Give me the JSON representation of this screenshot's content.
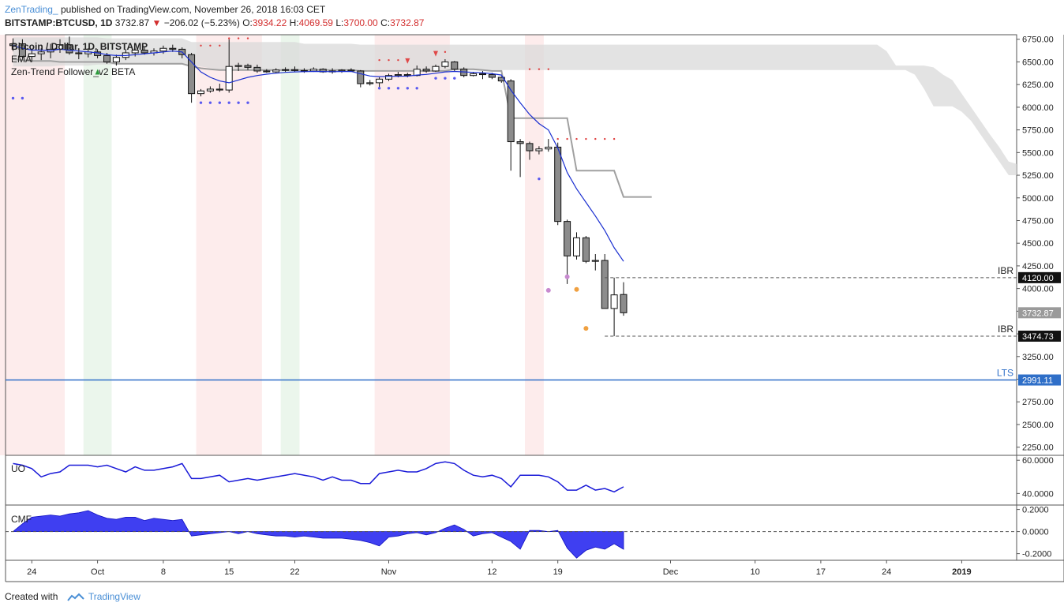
{
  "header": {
    "publisher": "ZenTrading_",
    "published_text": "published on TradingView.com, November 26, 2018 16:03 CET",
    "symbol": "BITSTAMP:BTCUSD, 1D",
    "last": "3732.87",
    "change_arrow": "▼",
    "change": "−206.02 (−5.23%)",
    "o_label": "O:",
    "o": "3934.22",
    "h_label": "H:",
    "h": "4069.59",
    "l_label": "L:",
    "l": "3700.00",
    "c_label": "C:",
    "c": "3732.87"
  },
  "footer": {
    "created_with": "Created with",
    "brand": "TradingView",
    "logo_icon": "tradingview-logo-icon"
  },
  "chart_data": {
    "type": "candlestick",
    "legend": [
      "Bitcoin / Dollar, 1D, BITSTAMP",
      "EMA",
      "Zen-Trend Follower_v2 BETA"
    ],
    "y_axis_ticks": [
      "6750.00",
      "6500.00",
      "6250.00",
      "6000.00",
      "5750.00",
      "5500.00",
      "5250.00",
      "5000.00",
      "4750.00",
      "4500.00",
      "4250.00",
      "4000.00",
      "3750.00",
      "3500.00",
      "3250.00",
      "3000.00",
      "2750.00",
      "2500.00",
      "2250.00"
    ],
    "ylim": [
      2160,
      6800
    ],
    "x_axis_ticks": [
      "24",
      "Oct",
      "8",
      "15",
      "22",
      "Nov",
      "12",
      "19",
      "Dec",
      "10",
      "17",
      "24",
      "2019"
    ],
    "price_labels": [
      {
        "label": "4120.00",
        "value": 4120,
        "style": "dark"
      },
      {
        "label": "3732.87",
        "value": 3732.87,
        "style": "gray"
      },
      {
        "label": "3474.73",
        "value": 3474.73,
        "style": "dark"
      },
      {
        "label": "2991.11",
        "value": 2991.11,
        "style": "blue"
      }
    ],
    "levels": [
      {
        "name": "IBR",
        "value": 4120,
        "style": "dashed"
      },
      {
        "name": "IBR",
        "value": 3474.73,
        "style": "dashed"
      },
      {
        "name": "LTS",
        "value": 2991.11,
        "style": "solid-blue"
      }
    ],
    "candles": [
      {
        "d": "2018-09-22",
        "o": 6700,
        "h": 6760,
        "l": 6620,
        "c": 6680
      },
      {
        "d": "2018-09-23",
        "o": 6700,
        "h": 6750,
        "l": 6540,
        "c": 6560
      },
      {
        "d": "2018-09-24",
        "o": 6560,
        "h": 6640,
        "l": 6500,
        "c": 6590
      },
      {
        "d": "2018-09-25",
        "o": 6590,
        "h": 6650,
        "l": 6520,
        "c": 6610
      },
      {
        "d": "2018-09-26",
        "o": 6610,
        "h": 6700,
        "l": 6540,
        "c": 6640
      },
      {
        "d": "2018-09-27",
        "o": 6640,
        "h": 6750,
        "l": 6600,
        "c": 6690
      },
      {
        "d": "2018-09-28",
        "o": 6690,
        "h": 6780,
        "l": 6580,
        "c": 6600
      },
      {
        "d": "2018-09-29",
        "o": 6600,
        "h": 6640,
        "l": 6530,
        "c": 6590
      },
      {
        "d": "2018-09-30",
        "o": 6590,
        "h": 6650,
        "l": 6550,
        "c": 6610
      },
      {
        "d": "2018-10-01",
        "o": 6610,
        "h": 6640,
        "l": 6540,
        "c": 6570
      },
      {
        "d": "2018-10-02",
        "o": 6570,
        "h": 6600,
        "l": 6480,
        "c": 6500
      },
      {
        "d": "2018-10-03",
        "o": 6500,
        "h": 6580,
        "l": 6460,
        "c": 6550
      },
      {
        "d": "2018-10-04",
        "o": 6550,
        "h": 6640,
        "l": 6520,
        "c": 6600
      },
      {
        "d": "2018-10-05",
        "o": 6600,
        "h": 6650,
        "l": 6560,
        "c": 6630
      },
      {
        "d": "2018-10-06",
        "o": 6630,
        "h": 6660,
        "l": 6580,
        "c": 6600
      },
      {
        "d": "2018-10-07",
        "o": 6600,
        "h": 6650,
        "l": 6570,
        "c": 6620
      },
      {
        "d": "2018-10-08",
        "o": 6620,
        "h": 6680,
        "l": 6590,
        "c": 6650
      },
      {
        "d": "2018-10-09",
        "o": 6650,
        "h": 6690,
        "l": 6610,
        "c": 6640
      },
      {
        "d": "2018-10-10",
        "o": 6640,
        "h": 6660,
        "l": 6540,
        "c": 6580
      },
      {
        "d": "2018-10-11",
        "o": 6580,
        "h": 6600,
        "l": 6050,
        "c": 6150
      },
      {
        "d": "2018-10-12",
        "o": 6150,
        "h": 6200,
        "l": 6120,
        "c": 6180
      },
      {
        "d": "2018-10-13",
        "o": 6180,
        "h": 6230,
        "l": 6160,
        "c": 6200
      },
      {
        "d": "2018-10-14",
        "o": 6200,
        "h": 6260,
        "l": 6170,
        "c": 6190
      },
      {
        "d": "2018-10-15",
        "o": 6190,
        "h": 6750,
        "l": 6160,
        "c": 6450
      },
      {
        "d": "2018-10-16",
        "o": 6450,
        "h": 6490,
        "l": 6400,
        "c": 6460
      },
      {
        "d": "2018-10-17",
        "o": 6460,
        "h": 6480,
        "l": 6410,
        "c": 6440
      },
      {
        "d": "2018-10-18",
        "o": 6440,
        "h": 6470,
        "l": 6380,
        "c": 6400
      },
      {
        "d": "2018-10-19",
        "o": 6400,
        "h": 6420,
        "l": 6380,
        "c": 6390
      },
      {
        "d": "2018-10-20",
        "o": 6390,
        "h": 6430,
        "l": 6380,
        "c": 6410
      },
      {
        "d": "2018-10-21",
        "o": 6410,
        "h": 6440,
        "l": 6390,
        "c": 6415
      },
      {
        "d": "2018-10-22",
        "o": 6415,
        "h": 6450,
        "l": 6390,
        "c": 6405
      },
      {
        "d": "2018-10-23",
        "o": 6405,
        "h": 6430,
        "l": 6380,
        "c": 6400
      },
      {
        "d": "2018-10-24",
        "o": 6400,
        "h": 6440,
        "l": 6390,
        "c": 6420
      },
      {
        "d": "2018-10-25",
        "o": 6420,
        "h": 6430,
        "l": 6380,
        "c": 6390
      },
      {
        "d": "2018-10-26",
        "o": 6390,
        "h": 6430,
        "l": 6370,
        "c": 6400
      },
      {
        "d": "2018-10-27",
        "o": 6400,
        "h": 6420,
        "l": 6380,
        "c": 6410
      },
      {
        "d": "2018-10-28",
        "o": 6410,
        "h": 6430,
        "l": 6390,
        "c": 6400
      },
      {
        "d": "2018-10-29",
        "o": 6400,
        "h": 6410,
        "l": 6220,
        "c": 6260
      },
      {
        "d": "2018-10-30",
        "o": 6260,
        "h": 6300,
        "l": 6240,
        "c": 6270
      },
      {
        "d": "2018-10-31",
        "o": 6270,
        "h": 6330,
        "l": 6220,
        "c": 6310
      },
      {
        "d": "2018-11-01",
        "o": 6310,
        "h": 6370,
        "l": 6290,
        "c": 6350
      },
      {
        "d": "2018-11-02",
        "o": 6350,
        "h": 6390,
        "l": 6330,
        "c": 6360
      },
      {
        "d": "2018-11-03",
        "o": 6360,
        "h": 6380,
        "l": 6330,
        "c": 6350
      },
      {
        "d": "2018-11-04",
        "o": 6350,
        "h": 6460,
        "l": 6340,
        "c": 6420
      },
      {
        "d": "2018-11-05",
        "o": 6420,
        "h": 6450,
        "l": 6380,
        "c": 6400
      },
      {
        "d": "2018-11-06",
        "o": 6400,
        "h": 6470,
        "l": 6390,
        "c": 6450
      },
      {
        "d": "2018-11-07",
        "o": 6450,
        "h": 6530,
        "l": 6430,
        "c": 6500
      },
      {
        "d": "2018-11-08",
        "o": 6500,
        "h": 6510,
        "l": 6400,
        "c": 6420
      },
      {
        "d": "2018-11-09",
        "o": 6420,
        "h": 6440,
        "l": 6330,
        "c": 6350
      },
      {
        "d": "2018-11-10",
        "o": 6350,
        "h": 6390,
        "l": 6340,
        "c": 6370
      },
      {
        "d": "2018-11-11",
        "o": 6370,
        "h": 6400,
        "l": 6310,
        "c": 6360
      },
      {
        "d": "2018-11-12",
        "o": 6360,
        "h": 6380,
        "l": 6310,
        "c": 6330
      },
      {
        "d": "2018-11-13",
        "o": 6330,
        "h": 6340,
        "l": 6270,
        "c": 6290
      },
      {
        "d": "2018-11-14",
        "o": 6290,
        "h": 6310,
        "l": 5300,
        "c": 5620
      },
      {
        "d": "2018-11-15",
        "o": 5620,
        "h": 5650,
        "l": 5230,
        "c": 5600
      },
      {
        "d": "2018-11-16",
        "o": 5600,
        "h": 5620,
        "l": 5420,
        "c": 5520
      },
      {
        "d": "2018-11-17",
        "o": 5520,
        "h": 5570,
        "l": 5480,
        "c": 5540
      },
      {
        "d": "2018-11-18",
        "o": 5540,
        "h": 5650,
        "l": 5510,
        "c": 5560
      },
      {
        "d": "2018-11-19",
        "o": 5560,
        "h": 5610,
        "l": 4700,
        "c": 4740
      },
      {
        "d": "2018-11-20",
        "o": 4740,
        "h": 4760,
        "l": 4050,
        "c": 4360
      },
      {
        "d": "2018-11-21",
        "o": 4360,
        "h": 4620,
        "l": 4320,
        "c": 4560
      },
      {
        "d": "2018-11-22",
        "o": 4560,
        "h": 4580,
        "l": 4280,
        "c": 4300
      },
      {
        "d": "2018-11-23",
        "o": 4300,
        "h": 4380,
        "l": 4200,
        "c": 4310
      },
      {
        "d": "2018-11-24",
        "o": 4310,
        "h": 4380,
        "l": 3800,
        "c": 3780
      },
      {
        "d": "2018-11-25",
        "o": 3780,
        "h": 4120,
        "l": 3475,
        "c": 3930
      },
      {
        "d": "2018-11-26",
        "o": 3934.22,
        "h": 4069.59,
        "l": 3700,
        "c": 3732.87
      }
    ],
    "ema": [
      6680,
      6650,
      6630,
      6630,
      6625,
      6640,
      6630,
      6620,
      6610,
      6600,
      6580,
      6570,
      6570,
      6580,
      6590,
      6600,
      6610,
      6620,
      6610,
      6500,
      6390,
      6330,
      6290,
      6270,
      6300,
      6330,
      6350,
      6365,
      6375,
      6385,
      6390,
      6393,
      6395,
      6394,
      6393,
      6394,
      6394,
      6370,
      6345,
      6338,
      6340,
      6342,
      6343,
      6355,
      6362,
      6375,
      6390,
      6395,
      6390,
      6385,
      6380,
      6370,
      6355,
      6190,
      6050,
      5920,
      5820,
      5750,
      5550,
      5280,
      5100,
      4950,
      4800,
      4640,
      4450,
      4300
    ],
    "cloud_upper": [
      6770,
      6770,
      6770,
      6770,
      6770,
      6770,
      6770,
      6770,
      6770,
      6770,
      6760,
      6760,
      6760,
      6760,
      6760,
      6760,
      6760,
      6760,
      6760,
      6720,
      6720,
      6720,
      6720,
      6720,
      6720,
      6720,
      6720,
      6720,
      6720,
      6720,
      6720,
      6700,
      6700,
      6700,
      6700,
      6700,
      6700,
      6690,
      6690,
      6690,
      6690,
      6690,
      6690,
      6690,
      6690,
      6690,
      6690,
      6690,
      6690,
      6690,
      6690,
      6690,
      6690,
      6690,
      6690,
      6690,
      6690,
      6690,
      6690,
      6690,
      6690,
      6690,
      6690,
      6690,
      6690,
      6690,
      6690,
      6690,
      6690,
      6690,
      6690,
      6690,
      6690,
      6690,
      6690,
      6690,
      6690,
      6690,
      6690,
      6690,
      6690,
      6690,
      6690,
      6690,
      6690,
      6690,
      6690,
      6690,
      6690,
      6690,
      6690,
      6690,
      6690,
      6620,
      6460,
      6460,
      6460,
      6460,
      6440,
      6360,
      6300,
      6150,
      6000,
      5850,
      5700,
      5560,
      5400,
      5370,
      5370,
      5370,
      5370,
      5370,
      5370,
      5370,
      5370,
      5200,
      5000,
      4900,
      4800,
      4800
    ],
    "cloud_lower": [
      6450,
      6450,
      6450,
      6450,
      6450,
      6460,
      6460,
      6460,
      6460,
      6470,
      6470,
      6470,
      6470,
      6470,
      6470,
      6470,
      6470,
      6470,
      6470,
      6460,
      6450,
      6430,
      6420,
      6410,
      6410,
      6410,
      6410,
      6410,
      6410,
      6410,
      6410,
      6410,
      6410,
      6410,
      6410,
      6410,
      6410,
      6410,
      6410,
      6410,
      6410,
      6410,
      6410,
      6410,
      6410,
      6410,
      6410,
      6410,
      6410,
      6410,
      6410,
      6410,
      6410,
      6410,
      6410,
      6410,
      6410,
      6410,
      6410,
      6410,
      6410,
      6410,
      6410,
      6410,
      6410,
      6410,
      6410,
      6410,
      6410,
      6410,
      6410,
      6410,
      6410,
      6410,
      6410,
      6410,
      6410,
      6410,
      6410,
      6410,
      6410,
      6410,
      6410,
      6410,
      6410,
      6410,
      6410,
      6410,
      6410,
      6410,
      6410,
      6410,
      6410,
      6410,
      6410,
      6410,
      6360,
      6200,
      6010,
      6010,
      6010,
      5950,
      5850,
      5700,
      5550,
      5400,
      5250,
      5250,
      5250,
      5250,
      5250,
      5200,
      5100,
      5000,
      4950,
      4850,
      4800,
      4800,
      4800,
      4800
    ],
    "cloud_offset_days": 0,
    "baseline": [
      6530,
      6520,
      6510,
      6510,
      6510,
      6500,
      6500,
      6500,
      6500,
      6500,
      6500,
      6480,
      6480,
      6480,
      6480,
      6480,
      6480,
      6480,
      6480,
      6450,
      6430,
      6420,
      6410,
      6410,
      6410,
      6410,
      6410,
      6410,
      6410,
      6410,
      6410,
      6410,
      6410,
      6410,
      6410,
      6410,
      6410,
      6400,
      6400,
      6400,
      6400,
      6400,
      6400,
      6400,
      6400,
      6400,
      6400,
      6420,
      6420,
      6420,
      6410,
      6400,
      6400,
      5880,
      5880,
      5880,
      5880,
      5880,
      5880,
      5880,
      5300,
      5300,
      5300,
      5300,
      5300,
      5010
    ],
    "baseline_extra": [
      5010,
      5010,
      5010
    ],
    "uo": [
      58,
      57,
      55,
      50,
      52,
      53,
      57,
      57,
      57,
      56,
      57,
      55,
      53,
      56,
      54,
      54,
      55,
      56,
      58,
      49,
      49,
      50,
      51,
      47,
      48,
      49,
      48,
      49,
      50,
      51,
      52,
      51,
      50,
      48,
      50,
      48,
      48,
      46,
      46,
      52,
      53,
      54,
      53,
      53,
      55,
      58,
      59,
      58,
      54,
      51,
      50,
      51,
      49,
      44,
      51,
      51,
      51,
      50,
      47,
      42,
      42,
      45,
      42,
      43,
      41,
      44
    ],
    "uo_ylim": [
      34,
      62
    ],
    "uo_ticks": [
      "60.0000",
      "40.0000"
    ],
    "cmf": [
      0.0,
      0.07,
      0.13,
      0.14,
      0.15,
      0.14,
      0.16,
      0.17,
      0.19,
      0.15,
      0.12,
      0.11,
      0.13,
      0.13,
      0.1,
      0.12,
      0.11,
      0.1,
      0.11,
      -0.04,
      -0.03,
      -0.02,
      -0.01,
      0.0,
      -0.02,
      0.0,
      -0.02,
      -0.03,
      -0.04,
      -0.04,
      -0.05,
      -0.04,
      -0.05,
      -0.06,
      -0.06,
      -0.06,
      -0.07,
      -0.08,
      -0.1,
      -0.13,
      -0.05,
      -0.04,
      -0.02,
      -0.01,
      -0.03,
      -0.01,
      0.03,
      0.06,
      0.02,
      -0.04,
      -0.02,
      -0.01,
      -0.05,
      -0.09,
      -0.16,
      0.01,
      0.01,
      0.0,
      0.01,
      -0.15,
      -0.24,
      -0.17,
      -0.14,
      -0.16,
      -0.11,
      -0.16
    ],
    "cmf_ylim": [
      -0.26,
      0.24
    ],
    "cmf_ticks": [
      "0.2000",
      "0.0000",
      "-0.2000"
    ],
    "panel_labels": [
      "UO",
      "CMF"
    ],
    "level_labels": [
      "IBR",
      "IBR",
      "LTS"
    ],
    "colors": {
      "bull": "#ffffff",
      "bear": "#8c8c8c",
      "ema": "#1a2fd0",
      "cloud": "#d9d9d9",
      "baseline": "#a0a0a0",
      "uo": "#1a1ad8",
      "cmf": "#2a2af0",
      "lts": "#2f6fc8",
      "bg_red": "#fdecec",
      "bg_green": "#ebf6ec"
    }
  }
}
